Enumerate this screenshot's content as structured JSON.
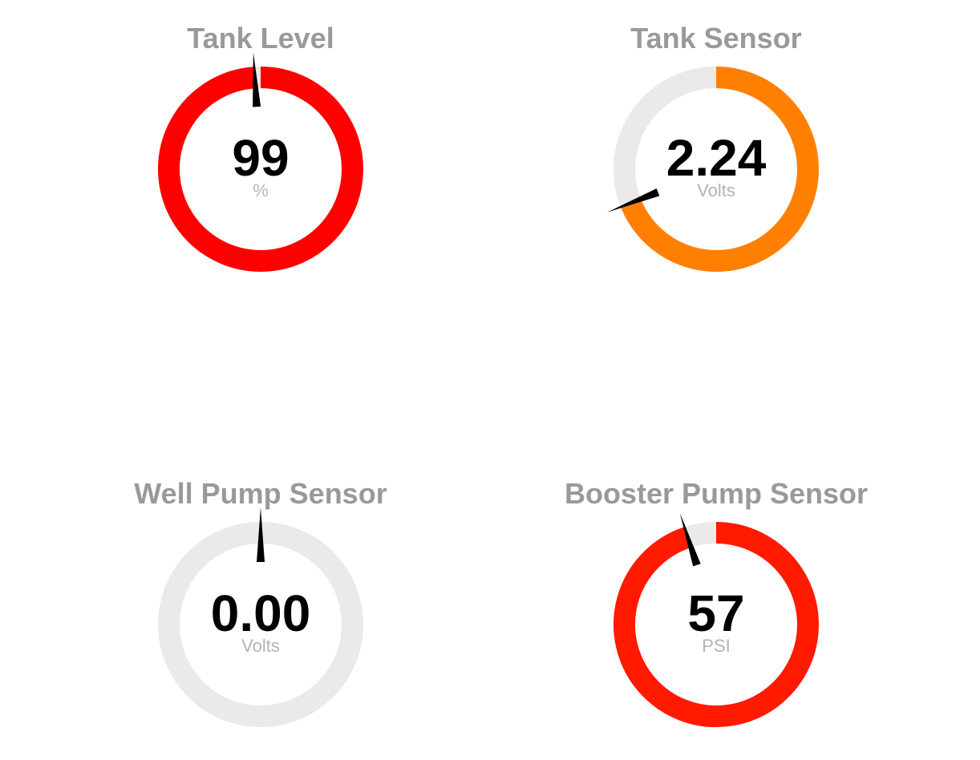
{
  "gauges": [
    {
      "title": "Tank Level",
      "value": "99",
      "unit": "%",
      "fraction": 0.99,
      "needle_fraction": 0.99,
      "color": "#ff0000"
    },
    {
      "title": "Tank Sensor",
      "value": "2.24",
      "unit": "Volts",
      "fraction": 0.69,
      "needle_fraction": 0.69,
      "color": "#ff8000"
    },
    {
      "title": "Well Pump Sensor",
      "value": "0.00",
      "unit": "Volts",
      "fraction": 0.0,
      "needle_fraction": 0.0,
      "color": "#ff0000"
    },
    {
      "title": "Booster Pump Sensor",
      "value": "57",
      "unit": "PSI",
      "fraction": 0.95,
      "needle_fraction": 0.95,
      "color": "#ff1a00"
    }
  ],
  "track_color": "#ebe9ea",
  "needle_color": "#000000"
}
